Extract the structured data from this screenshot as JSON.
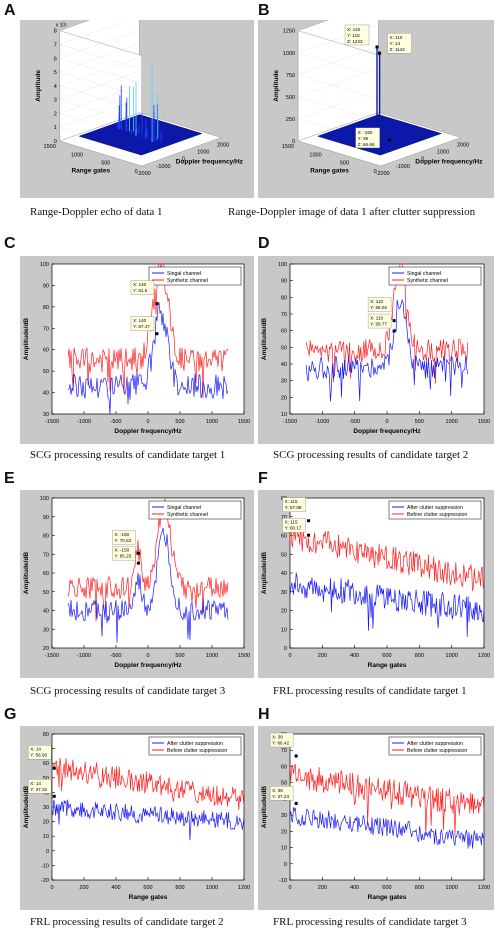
{
  "panels": {
    "A": {
      "letter": "A",
      "caption": "Range-Doppler echo of data 1"
    },
    "B": {
      "letter": "B",
      "caption": "Range-Doppler image of data 1 after clutter suppression"
    },
    "C": {
      "letter": "C",
      "caption": "SCG processing results of candidate target 1"
    },
    "D": {
      "letter": "D",
      "caption": "SCG processing results of candidate target 2"
    },
    "E": {
      "letter": "E",
      "caption": "SCG processing results of candidate target 3"
    },
    "F": {
      "letter": "F",
      "caption": "FRL processing results of candidate target 1"
    },
    "G": {
      "letter": "G",
      "caption": "FRL processing results of candidate target 2"
    },
    "H": {
      "letter": "H",
      "caption": "FRL processing results of candidate target 3"
    }
  },
  "colors": {
    "red": "#ff2020",
    "blue": "#1a1aff",
    "surface": "#0b18a8",
    "bg": "#c8c8c8"
  },
  "chart_data": [
    {
      "id": "A",
      "type": "surface3d",
      "xlabel": "Doppler frequency/Hz",
      "ylabel": "Range gates",
      "zlabel": "Amplitude",
      "zexp": "x 10⁵",
      "xticks": [
        "-2000",
        "-1000",
        "0",
        "1000",
        "2000"
      ],
      "yticks": [
        "0",
        "500",
        "1000",
        "1500"
      ],
      "zticks": [
        "0",
        "1",
        "2",
        "3",
        "4",
        "5",
        "6",
        "7",
        "8"
      ],
      "peaks": [
        {
          "x": 150,
          "y": 120,
          "z": 7.2
        },
        {
          "x": 200,
          "y": 300,
          "z": 4.0
        },
        {
          "x": 100,
          "y": 500,
          "z": 3.0
        }
      ]
    },
    {
      "id": "B",
      "type": "surface3d",
      "xlabel": "Doppler frequency/Hz",
      "ylabel": "Range gates",
      "zlabel": "Amplitude",
      "xticks": [
        "-2000",
        "-1000",
        "0",
        "1000",
        "2000"
      ],
      "yticks": [
        "0",
        "500",
        "1000",
        "1500"
      ],
      "zticks": [
        "0",
        "250",
        "500",
        "750",
        "1000",
        "1250"
      ],
      "annotations": [
        {
          "lines": [
            "X: 140",
            "Y: 115",
            "Z: 1223"
          ]
        },
        {
          "lines": [
            "X: 110",
            "Y: 14",
            "Z: 1142"
          ]
        },
        {
          "lines": [
            "X: -150",
            "Y: 39",
            "Z: 66.66"
          ]
        }
      ]
    },
    {
      "id": "C",
      "type": "line",
      "xlabel": "Doppler frequency/Hz",
      "ylabel": "Amplitude/dB",
      "xlim": [
        -1500,
        1500
      ],
      "ylim": [
        30,
        100
      ],
      "xticks": [
        "-1500",
        "-1000",
        "-500",
        "0",
        "500",
        "1000",
        "1500"
      ],
      "yticks": [
        "30",
        "40",
        "50",
        "60",
        "70",
        "80",
        "90",
        "100"
      ],
      "legend": [
        "Singal channel",
        "Synthetic channel"
      ],
      "legend_pos": "top-right",
      "series": [
        {
          "name": "Singal channel",
          "base": 43,
          "noise": 6,
          "peaks": [
            {
              "x": 200,
              "h": 35,
              "w": 150
            }
          ]
        },
        {
          "name": "Synthetic channel",
          "base": 55,
          "noise": 6,
          "peaks": [
            {
              "x": 200,
              "h": 45,
              "w": 160
            }
          ]
        }
      ],
      "annotations": [
        {
          "lines": [
            "X: 140",
            "Y: 81.5"
          ],
          "x": 140,
          "y": 81.5
        },
        {
          "lines": [
            "X: 140",
            "Y: 67.47"
          ],
          "x": 140,
          "y": 67.47
        }
      ]
    },
    {
      "id": "D",
      "type": "line",
      "xlabel": "Doppler frequency/Hz",
      "ylabel": "Amplitude/dB",
      "xlim": [
        -1500,
        1500
      ],
      "ylim": [
        10,
        100
      ],
      "xticks": [
        "-1500",
        "-1000",
        "-500",
        "0",
        "500",
        "1000",
        "1500"
      ],
      "yticks": [
        "10",
        "20",
        "30",
        "40",
        "50",
        "60",
        "70",
        "80",
        "90",
        "100"
      ],
      "legend": [
        "Singal channel",
        "Synthetic channel"
      ],
      "legend_pos": "top-right",
      "series": [
        {
          "name": "Singal channel",
          "base": 38,
          "noise": 7,
          "peaks": [
            {
              "x": 200,
              "h": 40,
              "w": 130
            }
          ]
        },
        {
          "name": "Synthetic channel",
          "base": 48,
          "noise": 7,
          "peaks": [
            {
              "x": 200,
              "h": 50,
              "w": 140
            }
          ]
        }
      ],
      "annotations": [
        {
          "lines": [
            "X: 110",
            "Y: 66.02"
          ],
          "x": 110,
          "y": 66.02
        },
        {
          "lines": [
            "X: 110",
            "Y: 59.77"
          ],
          "x": 110,
          "y": 59.77
        }
      ]
    },
    {
      "id": "E",
      "type": "line",
      "xlabel": "Doppler frequency/Hz",
      "ylabel": "Amplitude/dB",
      "xlim": [
        -1500,
        1500
      ],
      "ylim": [
        20,
        100
      ],
      "xticks": [
        "-1500",
        "-1000",
        "-500",
        "0",
        "500",
        "1000",
        "1500"
      ],
      "yticks": [
        "20",
        "30",
        "40",
        "50",
        "60",
        "70",
        "80",
        "90",
        "100"
      ],
      "legend": [
        "Singal channel",
        "Synthetic channel"
      ],
      "legend_pos": "top-right",
      "series": [
        {
          "name": "Singal channel",
          "base": 40,
          "noise": 6,
          "peaks": [
            {
              "x": 250,
              "h": 40,
              "w": 140
            },
            {
              "x": -150,
              "h": 15,
              "w": 70
            }
          ]
        },
        {
          "name": "Synthetic channel",
          "base": 52,
          "noise": 6,
          "peaks": [
            {
              "x": 250,
              "h": 45,
              "w": 150
            },
            {
              "x": -150,
              "h": 20,
              "w": 70
            }
          ]
        }
      ],
      "annotations": [
        {
          "lines": [
            "X: -150",
            "Y: 70.52"
          ],
          "x": -150,
          "y": 70.52
        },
        {
          "lines": [
            "X: -150",
            "Y: 65.25"
          ],
          "x": -150,
          "y": 65.25
        }
      ]
    },
    {
      "id": "F",
      "type": "line",
      "xlabel": "Range gates",
      "ylabel": "Amplitude/dB",
      "xlim": [
        0,
        1200
      ],
      "ylim": [
        0,
        80
      ],
      "xticks": [
        "0",
        "200",
        "400",
        "600",
        "800",
        "1000",
        "1200"
      ],
      "yticks": [
        "0",
        "10",
        "20",
        "30",
        "40",
        "50",
        "60",
        "70",
        "80"
      ],
      "legend": [
        "After clutter suppression",
        "Before clutter suppression"
      ],
      "legend_pos": "top-right",
      "series": [
        {
          "name": "After clutter suppression",
          "start": 34,
          "end": 20,
          "noise": 7
        },
        {
          "name": "Before clutter suppression",
          "start": 60,
          "end": 36,
          "noise": 7
        }
      ],
      "annotations": [
        {
          "lines": [
            "X: 115",
            "Y: 67.88"
          ],
          "x": 115,
          "y": 67.88
        },
        {
          "lines": [
            "X: 115",
            "Y: 60.17"
          ],
          "x": 115,
          "y": 60.17
        }
      ]
    },
    {
      "id": "G",
      "type": "line",
      "xlabel": "Range gates",
      "ylabel": "Amplitude/dB",
      "xlim": [
        0,
        1200
      ],
      "ylim": [
        -20,
        80
      ],
      "xticks": [
        "0",
        "200",
        "400",
        "600",
        "800",
        "1000",
        "1200"
      ],
      "yticks": [
        "-20",
        "-10",
        "0",
        "10",
        "20",
        "30",
        "40",
        "50",
        "60",
        "70",
        "80"
      ],
      "legend": [
        "After clutter suppression",
        "Before clutter suppression"
      ],
      "legend_pos": "top-right",
      "series": [
        {
          "name": "After clutter suppression",
          "start": 30,
          "end": 20,
          "noise": 6
        },
        {
          "name": "Before clutter suppression",
          "start": 58,
          "end": 35,
          "noise": 8
        }
      ],
      "annotations": [
        {
          "lines": [
            "X: 14",
            "Y: 56.56"
          ],
          "x": 14,
          "y": 56.56
        },
        {
          "lines": [
            "X: 14",
            "Y: 37.32"
          ],
          "x": 14,
          "y": 37.32
        }
      ]
    },
    {
      "id": "H",
      "type": "line",
      "xlabel": "Range gates",
      "ylabel": "Amplitude/dB",
      "xlim": [
        0,
        1200
      ],
      "ylim": [
        -10,
        80
      ],
      "xticks": [
        "0",
        "200",
        "400",
        "600",
        "800",
        "1000",
        "1200"
      ],
      "yticks": [
        "-10",
        "0",
        "10",
        "20",
        "30",
        "40",
        "50",
        "60",
        "70",
        "80"
      ],
      "legend": [
        "After clutter suppression",
        "Before clutter suppression"
      ],
      "legend_pos": "top-right",
      "series": [
        {
          "name": "After clutter suppression",
          "start": 30,
          "end": 14,
          "noise": 6
        },
        {
          "name": "Before clutter suppression",
          "start": 55,
          "end": 35,
          "noise": 8
        }
      ],
      "annotations": [
        {
          "lines": [
            "X: 38",
            "Y: 66.42"
          ],
          "x": 38,
          "y": 66.42
        },
        {
          "lines": [
            "X: 38",
            "Y: 37.23"
          ],
          "x": 38,
          "y": 37.23
        }
      ]
    }
  ]
}
